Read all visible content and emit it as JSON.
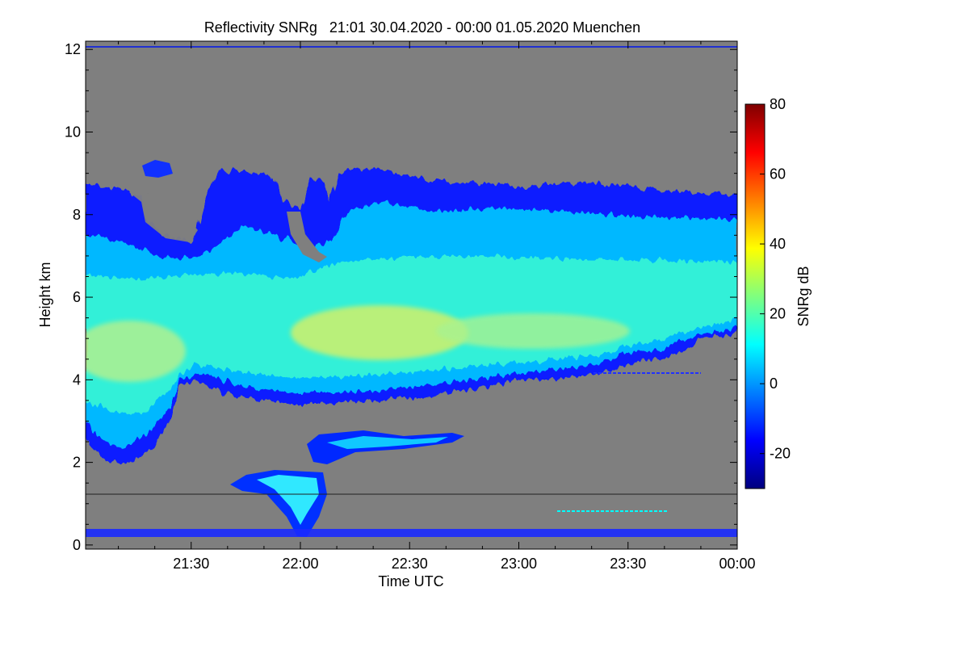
{
  "chart_data": {
    "type": "heatmap",
    "title": "Reflectivity SNRg   21:01 30.04.2020 - 00:00 01.05.2020 Muenchen",
    "xlabel": "Time UTC",
    "ylabel": "Height km",
    "xlim": [
      "21:01",
      "00:00"
    ],
    "x_ticks": [
      "21:30",
      "22:00",
      "22:30",
      "23:00",
      "23:30",
      "00:00"
    ],
    "ylim": [
      -0.1,
      12.2
    ],
    "y_ticks": [
      0,
      2,
      4,
      6,
      8,
      10,
      12
    ],
    "background_color": "#7f7f7f",
    "colorbar": {
      "label": "SNRg dB",
      "range": [
        -30,
        80
      ],
      "ticks": [
        "-20",
        "0",
        "20",
        "40",
        "60",
        "80"
      ],
      "colormap": [
        "#00007f",
        "#0000ff",
        "#007fff",
        "#00ffff",
        "#7fff7f",
        "#ffff00",
        "#ff7f00",
        "#ff0000",
        "#7f0000"
      ]
    }
  }
}
